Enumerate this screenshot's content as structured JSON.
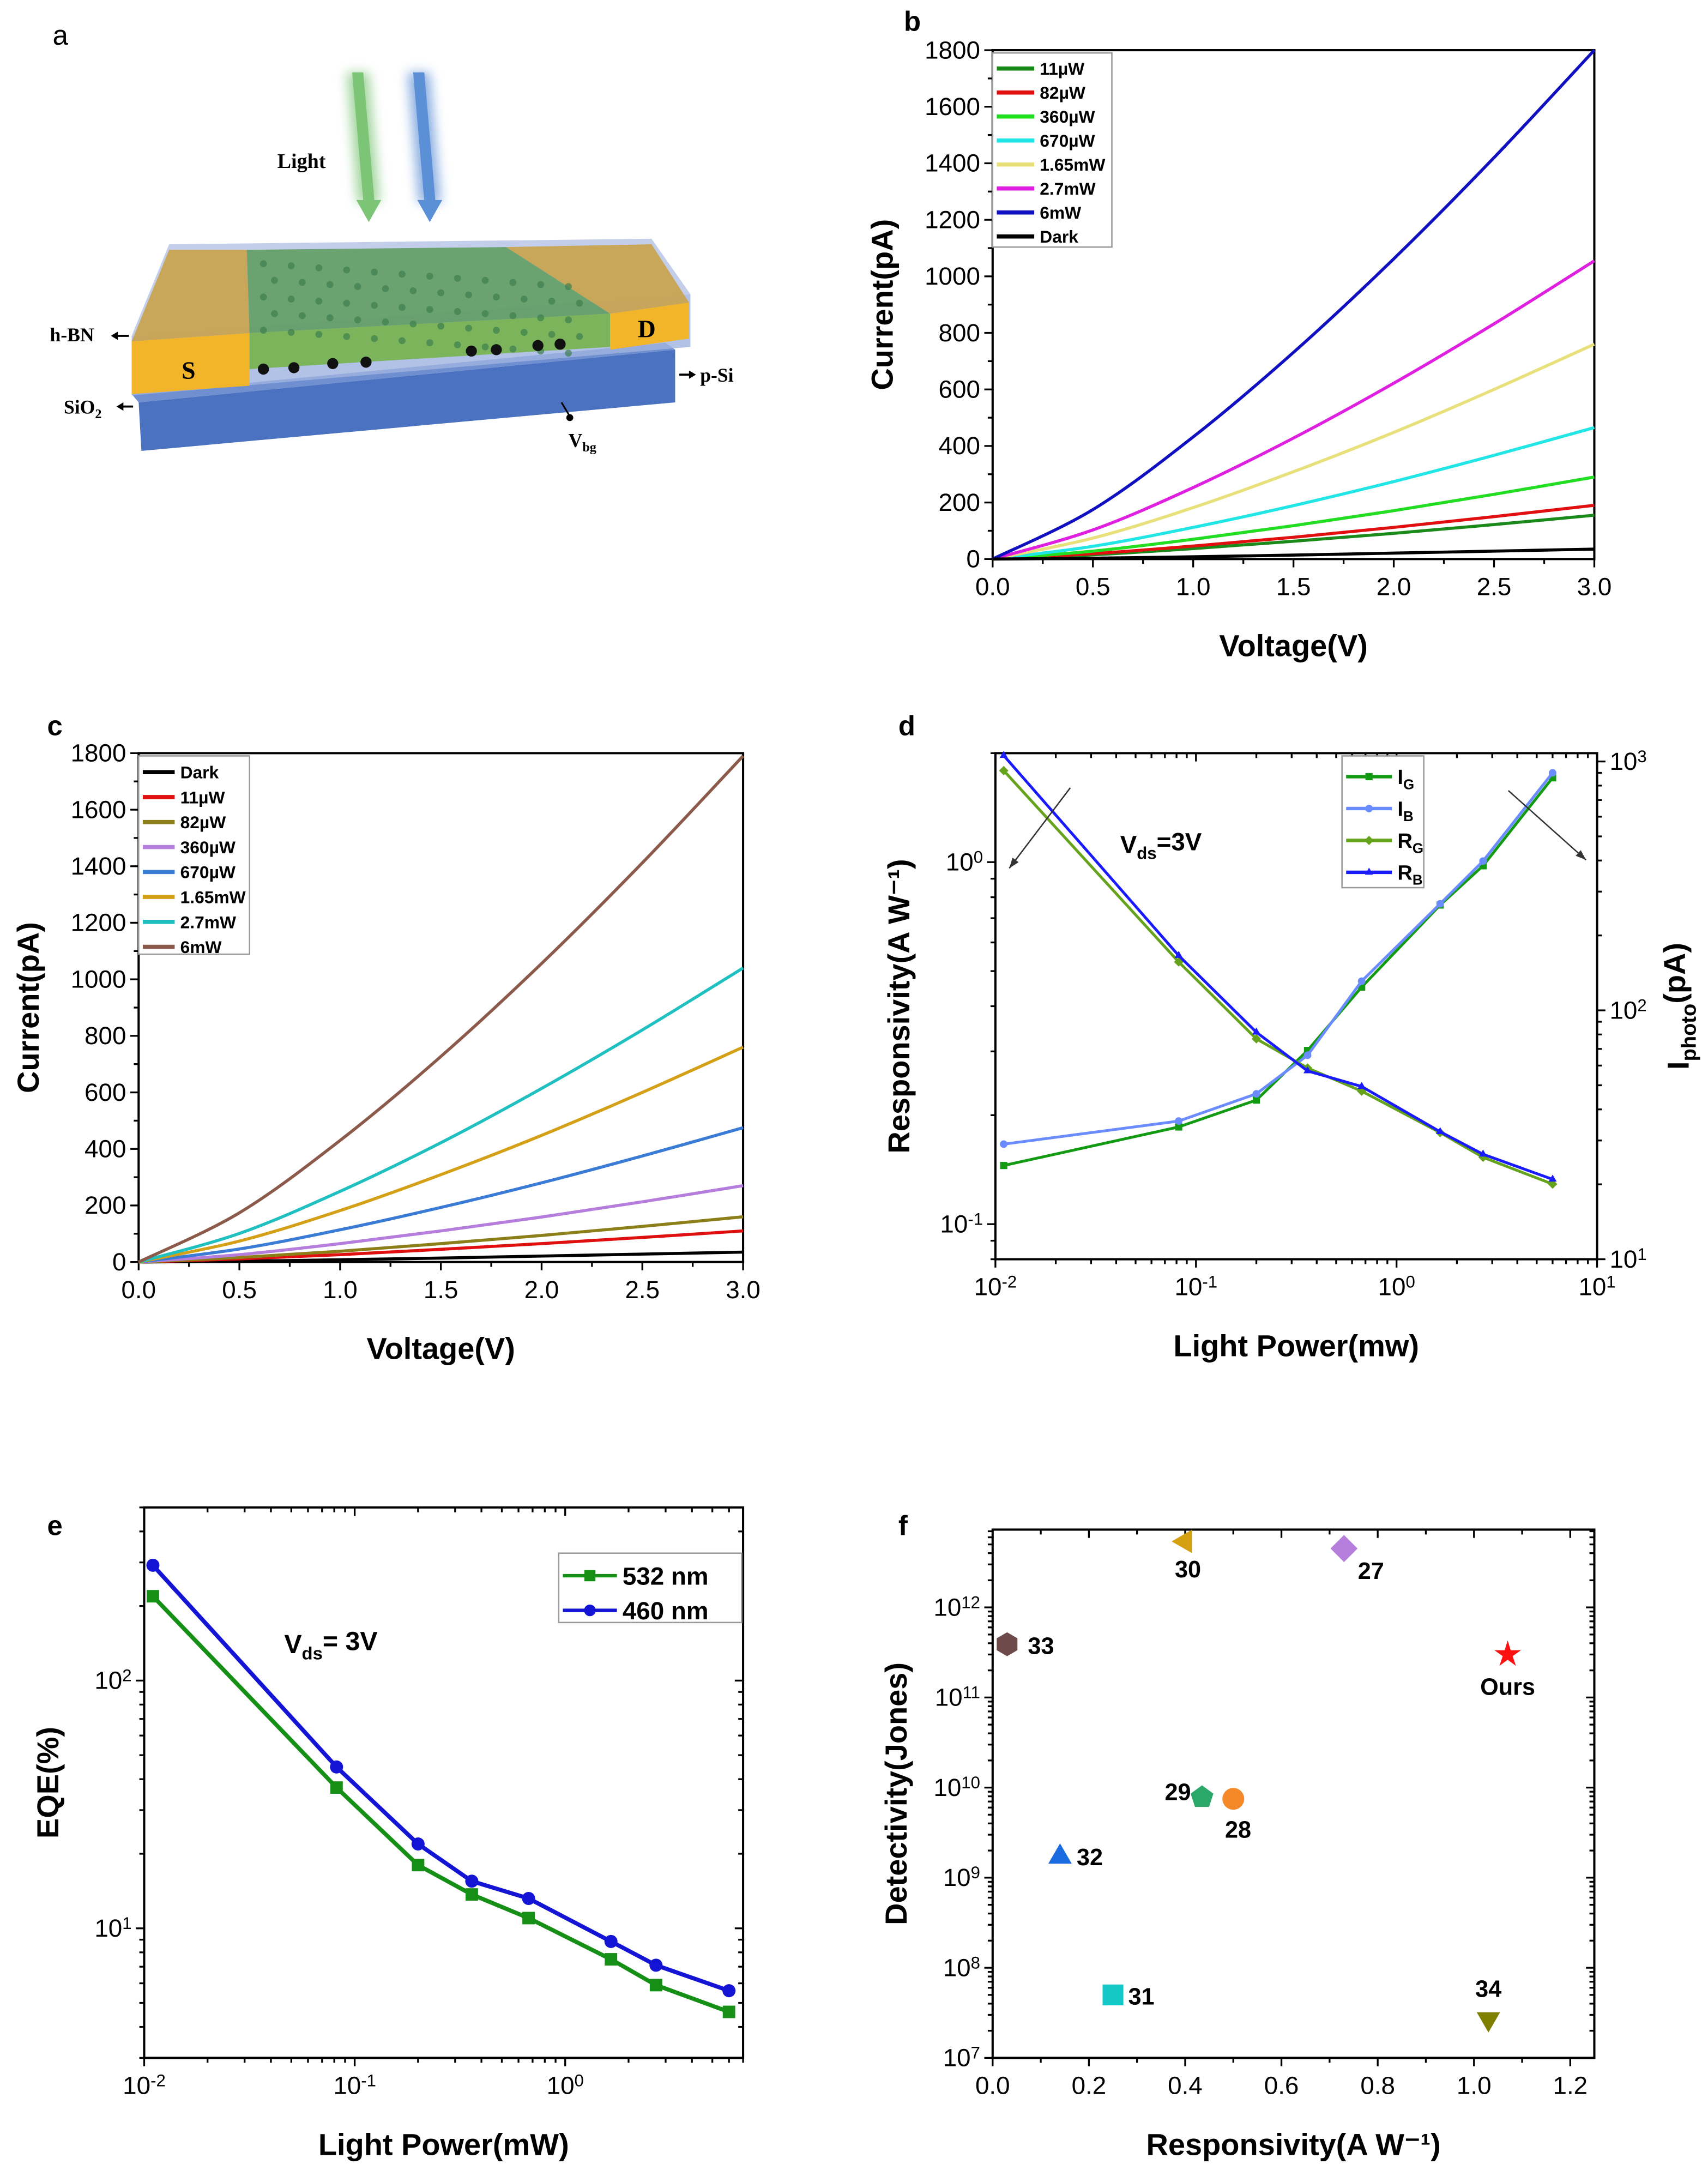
{
  "schematic": {
    "panel_label": "a",
    "light": "Light",
    "hbn": "h-BN",
    "source": "S",
    "drain": "D",
    "sio2": "SiO_{2}",
    "psi": "p-Si",
    "vbg": "V_{bg}",
    "colors": {
      "green_beam": "#7cc576",
      "blue_beam": "#5b8fd6",
      "electrode": "#f2b52a",
      "channel": "#5a9a5a",
      "substrate": "#4a72c0",
      "hbn": "#b8c6e6"
    }
  },
  "chart_data": [
    {
      "panel": "b",
      "type": "line",
      "xlabel": "Voltage(V)",
      "ylabel": "Current(pA)",
      "xlim": [
        0,
        3
      ],
      "ylim": [
        0,
        1800
      ],
      "xscale": "linear",
      "yscale": "linear",
      "xticks": [
        0,
        0.5,
        1,
        1.5,
        2,
        2.5,
        3
      ],
      "xticklabels": [
        "0.0",
        "0.5",
        "1.0",
        "1.5",
        "2.0",
        "2.5",
        "3.0"
      ],
      "yticks": [
        0,
        200,
        400,
        600,
        800,
        1000,
        1200,
        1400,
        1600,
        1800
      ],
      "yticklabels": [
        "0",
        "200",
        "400",
        "600",
        "800",
        "1000",
        "1200",
        "1400",
        "1600",
        "1800"
      ],
      "legend": "top-left",
      "grid": false,
      "x": [
        0,
        0.5,
        1,
        1.5,
        2,
        2.5,
        3
      ],
      "series": [
        {
          "name": "11µW",
          "color": "#1a8a1a",
          "values": [
            0,
            15,
            37,
            63,
            91,
            122,
            155
          ]
        },
        {
          "name": "82µW",
          "color": "#e01010",
          "values": [
            0,
            19,
            46,
            77,
            112,
            150,
            190
          ]
        },
        {
          "name": "360µW",
          "color": "#22dd22",
          "values": [
            0,
            28,
            70,
            118,
            171,
            229,
            290
          ]
        },
        {
          "name": "670µW",
          "color": "#22e6e6",
          "values": [
            0,
            45,
            112,
            189,
            274,
            367,
            465
          ]
        },
        {
          "name": "1.65mW",
          "color": "#e8e07a",
          "values": [
            0,
            74,
            182,
            309,
            448,
            600,
            760
          ]
        },
        {
          "name": "2.7mW",
          "color": "#e020e0",
          "values": [
            0,
            103,
            253,
            428,
            622,
            832,
            1055
          ]
        },
        {
          "name": "6mW",
          "color": "#1010c0",
          "values": [
            0,
            175,
            432,
            731,
            1062,
            1420,
            1800
          ]
        },
        {
          "name": "Dark",
          "color": "#000000",
          "values": [
            0,
            3,
            8,
            14,
            21,
            28,
            35
          ]
        }
      ]
    },
    {
      "panel": "c",
      "type": "line",
      "xlabel": "Voltage(V)",
      "ylabel": "Current(pA)",
      "xlim": [
        0,
        3
      ],
      "ylim": [
        0,
        1800
      ],
      "xscale": "linear",
      "yscale": "linear",
      "xticks": [
        0,
        0.5,
        1,
        1.5,
        2,
        2.5,
        3
      ],
      "xticklabels": [
        "0.0",
        "0.5",
        "1.0",
        "1.5",
        "2.0",
        "2.5",
        "3.0"
      ],
      "yticks": [
        0,
        200,
        400,
        600,
        800,
        1000,
        1200,
        1400,
        1600,
        1800
      ],
      "yticklabels": [
        "0",
        "200",
        "400",
        "600",
        "800",
        "1000",
        "1200",
        "1400",
        "1600",
        "1800"
      ],
      "legend": "top-left",
      "grid": false,
      "x": [
        0,
        0.5,
        1,
        1.5,
        2,
        2.5,
        3
      ],
      "series": [
        {
          "name": "Dark",
          "color": "#000000",
          "values": [
            0,
            3,
            8,
            14,
            21,
            28,
            35
          ]
        },
        {
          "name": "11µW",
          "color": "#e01010",
          "values": [
            0,
            11,
            26,
            45,
            65,
            87,
            110
          ]
        },
        {
          "name": "82µW",
          "color": "#8c7f1a",
          "values": [
            0,
            16,
            38,
            65,
            94,
            126,
            160
          ]
        },
        {
          "name": "360µW",
          "color": "#b57edc",
          "values": [
            0,
            26,
            65,
            110,
            159,
            213,
            270
          ]
        },
        {
          "name": "670µW",
          "color": "#3a7bd5",
          "values": [
            0,
            46,
            114,
            193,
            280,
            375,
            475
          ]
        },
        {
          "name": "1.65mW",
          "color": "#d4a017",
          "values": [
            0,
            74,
            182,
            309,
            448,
            600,
            760
          ]
        },
        {
          "name": "2.7mW",
          "color": "#20c0c0",
          "values": [
            0,
            101,
            250,
            422,
            614,
            821,
            1040
          ]
        },
        {
          "name": "6mW",
          "color": "#8b5a4a",
          "values": [
            0,
            174,
            430,
            727,
            1056,
            1412,
            1790
          ]
        }
      ]
    },
    {
      "panel": "d",
      "type": "line",
      "xlabel": "Light Power(mw)",
      "ylabel": "Responsivity(A W⁻¹)",
      "ylabel_right": "I_{photo}(pA)",
      "xlim": [
        0.01,
        10
      ],
      "ylim": [
        0.08,
        2
      ],
      "ylim_right": [
        10,
        1080
      ],
      "xscale": "log",
      "yscale": "log",
      "yscale_right": "log",
      "xticks": [
        0.01,
        0.1,
        1,
        10
      ],
      "xticklabels": [
        "10^{-2}",
        "10^{-1}",
        "10^{0}",
        "10^{1}"
      ],
      "yticks": [
        0.1,
        1
      ],
      "yticklabels": [
        "10^{-1}",
        "10^{0}"
      ],
      "yticks_right": [
        10,
        100,
        1000
      ],
      "yticklabels_right": [
        "10^{1}",
        "10^{2}",
        "10^{3}"
      ],
      "legend": "top-center",
      "grid": false,
      "annotation": "V_{ds}=3V",
      "x": [
        0.011,
        0.082,
        0.2,
        0.36,
        0.67,
        1.65,
        2.7,
        6
      ],
      "series": [
        {
          "name": "I_{G}",
          "axis": "right",
          "marker": "square",
          "color": "#139a13",
          "values": [
            23.8,
            34,
            43.6,
            69,
            124,
            265,
            381,
            860
          ]
        },
        {
          "name": "I_{B}",
          "axis": "right",
          "marker": "circle",
          "color": "#6b8cff",
          "values": [
            29,
            35.9,
            46.2,
            66,
            131,
            268,
            398,
            900
          ]
        },
        {
          "name": "R_{G}",
          "axis": "left",
          "marker": "diamond",
          "color": "#66a31c",
          "values": [
            1.79,
            0.53,
            0.325,
            0.27,
            0.233,
            0.179,
            0.153,
            0.129
          ]
        },
        {
          "name": "R_{B}",
          "axis": "left",
          "marker": "triangle-up",
          "color": "#1a1aff",
          "values": [
            1.97,
            0.552,
            0.339,
            0.265,
            0.24,
            0.18,
            0.156,
            0.133
          ]
        }
      ]
    },
    {
      "panel": "e",
      "type": "line",
      "xlabel": "Light Power(mW)",
      "ylabel": "EQE(%)",
      "xlim": [
        0.01,
        7
      ],
      "ylim": [
        3,
        500
      ],
      "xscale": "log",
      "yscale": "log",
      "xticks": [
        0.01,
        0.1,
        1
      ],
      "xticklabels": [
        "10^{-2}",
        "10^{-1}",
        "10^{0}"
      ],
      "yticks": [
        10,
        100
      ],
      "yticklabels": [
        "10^{1}",
        "10^{2}"
      ],
      "legend": "top-right",
      "grid": false,
      "annotation": "V_{ds}= 3V",
      "x": [
        0.011,
        0.082,
        0.2,
        0.36,
        0.67,
        1.65,
        2.7,
        6
      ],
      "series": [
        {
          "name": "532 nm",
          "marker": "square",
          "color": "#168f16",
          "values": [
            219,
            37,
            18,
            13.7,
            11,
            7.5,
            5.9,
            4.6
          ]
        },
        {
          "name": "460 nm",
          "marker": "circle",
          "color": "#1414d4",
          "values": [
            292,
            44.8,
            21.9,
            15.5,
            13.2,
            8.85,
            7.1,
            5.6
          ]
        }
      ]
    },
    {
      "panel": "f",
      "type": "scatter",
      "xlabel": "Responsivity(A W⁻¹)",
      "ylabel": "Detectivity(Jones)",
      "xlim": [
        0,
        1.25
      ],
      "ylim": [
        10000000.0,
        7300000000000.0
      ],
      "xscale": "linear",
      "yscale": "log",
      "xticks": [
        0,
        0.2,
        0.4,
        0.6,
        0.8,
        1.0,
        1.2
      ],
      "xticklabels": [
        "0.0",
        "0.2",
        "0.4",
        "0.6",
        "0.8",
        "1.0",
        "1.2"
      ],
      "yticks": [
        10000000.0,
        100000000.0,
        1000000000.0,
        10000000000.0,
        100000000000.0,
        1000000000000.0
      ],
      "yticklabels": [
        "10^{7}",
        "10^{8}",
        "10^{9}",
        "10^{10}",
        "10^{11}",
        "10^{12}"
      ],
      "grid": false,
      "points": [
        {
          "label": "30",
          "x": 0.4,
          "y": 5400000000000.0,
          "marker": "triangle-left",
          "color": "#d4a010"
        },
        {
          "label": "27",
          "x": 0.73,
          "y": 4500000000000.0,
          "marker": "diamond",
          "color": "#b57edc"
        },
        {
          "label": "33",
          "x": 0.03,
          "y": 390000000000.0,
          "marker": "hexagon",
          "color": "#6e4a4a"
        },
        {
          "label": "Ours",
          "x": 1.07,
          "y": 300000000000.0,
          "marker": "star",
          "color": "#ff1010"
        },
        {
          "label": "29",
          "x": 0.435,
          "y": 7800000000.0,
          "marker": "pentagon",
          "color": "#2aa86a"
        },
        {
          "label": "28",
          "x": 0.5,
          "y": 7500000000.0,
          "marker": "circle",
          "color": "#f5892a"
        },
        {
          "label": "32",
          "x": 0.14,
          "y": 1700000000.0,
          "marker": "triangle-up",
          "color": "#1a6ae0"
        },
        {
          "label": "31",
          "x": 0.25,
          "y": 50000000.0,
          "marker": "square",
          "color": "#14c8c8"
        },
        {
          "label": "34",
          "x": 1.03,
          "y": 27000000.0,
          "marker": "triangle-down",
          "color": "#808000"
        }
      ]
    }
  ]
}
